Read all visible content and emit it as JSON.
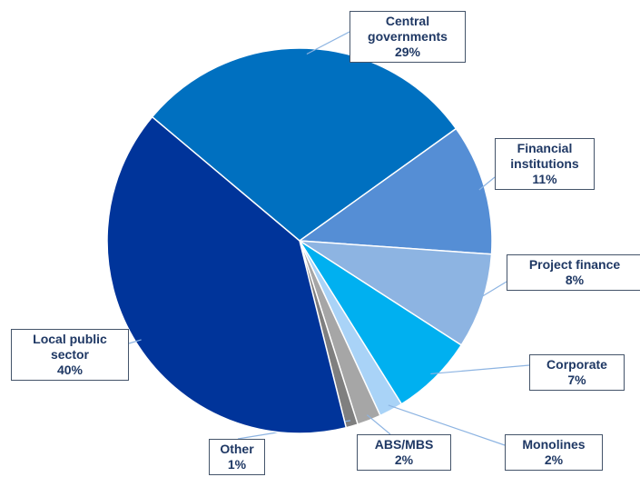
{
  "chart_data": {
    "type": "pie",
    "categories": [
      "Central governments",
      "Financial institutions",
      "Project finance",
      "Corporate",
      "Monolines",
      "ABS/MBS",
      "Other",
      "Local public sector"
    ],
    "values": [
      29,
      11,
      8,
      7,
      2,
      2,
      1,
      40
    ],
    "value_labels": [
      "29%",
      "11%",
      "8%",
      "7%",
      "2%",
      "2%",
      "1%",
      "40%"
    ],
    "colors": [
      "#0070c0",
      "#558ed5",
      "#8db4e2",
      "#00b0f0",
      "#a9d3f7",
      "#a6a6a6",
      "#7f7f7f",
      "#00349a"
    ]
  }
}
